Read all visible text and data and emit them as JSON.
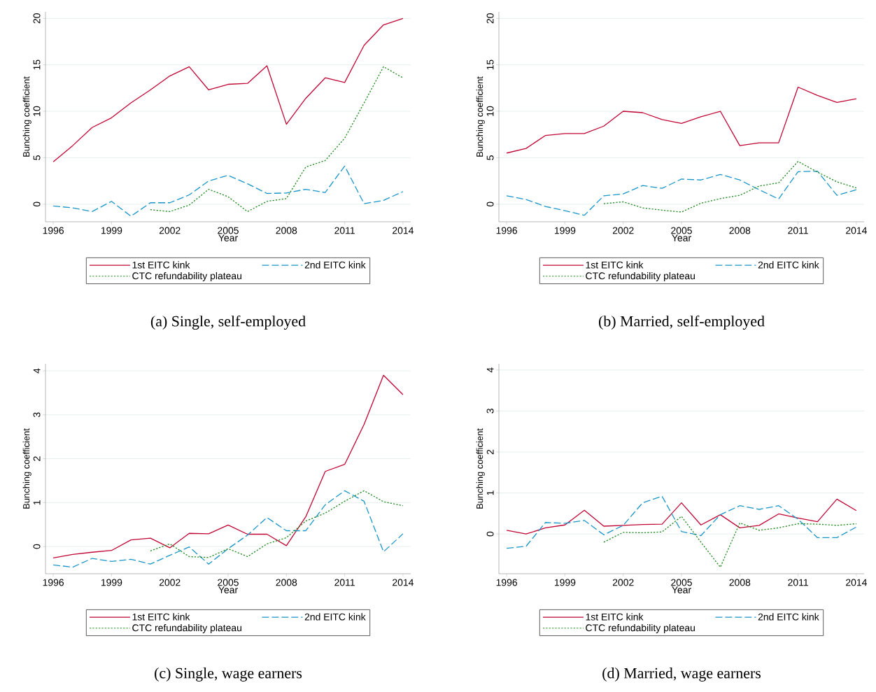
{
  "chart_data": [
    {
      "type": "line",
      "title": "(a) Single, self-employed",
      "xlabel": "Year",
      "ylabel": "Bunching coefficient",
      "x": [
        1996,
        1997,
        1998,
        1999,
        2000,
        2001,
        2002,
        2003,
        2004,
        2005,
        2006,
        2007,
        2008,
        2009,
        2010,
        2011,
        2012,
        2013,
        2014
      ],
      "xlim": [
        1995.6,
        2014.4
      ],
      "ylim": [
        -1.9,
        20.7
      ],
      "xticks": [
        1996,
        1999,
        2002,
        2005,
        2008,
        2011,
        2014
      ],
      "yticks": [
        0,
        5,
        10,
        15,
        20
      ],
      "grid": "y",
      "legend": "bottom",
      "series": [
        {
          "name": "1st EITC kink",
          "color": "#c10534",
          "line_style": "solid",
          "values": [
            4.55,
            6.3,
            8.25,
            9.3,
            10.9,
            12.3,
            13.8,
            14.8,
            12.3,
            12.9,
            13.0,
            14.9,
            8.6,
            11.4,
            13.6,
            13.1,
            17.1,
            19.3,
            20.0
          ]
        },
        {
          "name": "2nd EITC kink",
          "color": "#1a96c8",
          "line_style": "dashed",
          "values": [
            -0.2,
            -0.4,
            -0.8,
            0.3,
            -1.3,
            0.15,
            0.15,
            1.0,
            2.5,
            3.1,
            2.2,
            1.15,
            1.2,
            1.6,
            1.25,
            4.1,
            0.05,
            0.4,
            1.35
          ]
        },
        {
          "name": "CTC refundability plateau",
          "color": "#1f8a1f",
          "line_style": "dotted",
          "values": [
            null,
            null,
            null,
            null,
            null,
            -0.6,
            -0.8,
            -0.1,
            1.6,
            0.8,
            -0.8,
            0.3,
            0.6,
            4.0,
            4.7,
            7.1,
            10.9,
            14.8,
            13.6
          ]
        }
      ]
    },
    {
      "type": "line",
      "title": "(b) Married, self-employed",
      "xlabel": "Year",
      "ylabel": "Bunching coefficient",
      "x": [
        1996,
        1997,
        1998,
        1999,
        2000,
        2001,
        2002,
        2003,
        2004,
        2005,
        2006,
        2007,
        2008,
        2009,
        2010,
        2011,
        2012,
        2013,
        2014
      ],
      "xlim": [
        1995.6,
        2014.4
      ],
      "ylim": [
        -1.9,
        20.7
      ],
      "xticks": [
        1996,
        1999,
        2002,
        2005,
        2008,
        2011,
        2014
      ],
      "yticks": [
        0,
        5,
        10,
        15,
        20
      ],
      "grid": "y",
      "legend": "bottom",
      "series": [
        {
          "name": "1st EITC kink",
          "color": "#c10534",
          "line_style": "solid",
          "values": [
            5.5,
            6.0,
            7.4,
            7.6,
            7.6,
            8.4,
            10.0,
            9.85,
            9.1,
            8.7,
            9.4,
            10.0,
            6.3,
            6.6,
            6.6,
            12.6,
            11.7,
            10.95,
            11.35
          ]
        },
        {
          "name": "2nd EITC kink",
          "color": "#1a96c8",
          "line_style": "dashed",
          "values": [
            0.9,
            0.5,
            -0.25,
            -0.7,
            -1.2,
            0.9,
            1.1,
            2.0,
            1.7,
            2.7,
            2.6,
            3.2,
            2.6,
            1.55,
            0.55,
            3.5,
            3.55,
            0.95,
            1.55
          ]
        },
        {
          "name": "CTC refundability plateau",
          "color": "#1f8a1f",
          "line_style": "dotted",
          "values": [
            null,
            null,
            null,
            null,
            null,
            0.05,
            0.25,
            -0.4,
            -0.65,
            -0.85,
            0.1,
            0.6,
            0.95,
            1.95,
            2.3,
            4.6,
            3.45,
            2.4,
            1.75
          ]
        }
      ]
    },
    {
      "type": "line",
      "title": "(c) Single, wage earners",
      "xlabel": "Year",
      "ylabel": "Bunching coefficient",
      "x": [
        1996,
        1997,
        1998,
        1999,
        2000,
        2001,
        2002,
        2003,
        2004,
        2005,
        2006,
        2007,
        2008,
        2009,
        2010,
        2011,
        2012,
        2013,
        2014
      ],
      "xlim": [
        1995.6,
        2014.4
      ],
      "ylim": [
        -0.62,
        4.16
      ],
      "xticks": [
        1996,
        1999,
        2002,
        2005,
        2008,
        2011,
        2014
      ],
      "yticks": [
        0,
        1,
        2,
        3,
        4
      ],
      "grid": "y",
      "legend": "bottom",
      "series": [
        {
          "name": "1st EITC kink",
          "color": "#c10534",
          "line_style": "solid",
          "values": [
            -0.26,
            -0.18,
            -0.13,
            -0.09,
            0.15,
            0.19,
            -0.03,
            0.3,
            0.29,
            0.49,
            0.28,
            0.28,
            0.02,
            0.68,
            1.71,
            1.87,
            2.78,
            3.9,
            3.46
          ]
        },
        {
          "name": "2nd EITC kink",
          "color": "#1a96c8",
          "line_style": "dashed",
          "values": [
            -0.42,
            -0.47,
            -0.27,
            -0.34,
            -0.29,
            -0.4,
            -0.2,
            -0.01,
            -0.4,
            -0.05,
            0.26,
            0.66,
            0.36,
            0.36,
            0.95,
            1.27,
            1.03,
            -0.12,
            0.29
          ]
        },
        {
          "name": "CTC refundability plateau",
          "color": "#1f8a1f",
          "line_style": "dotted",
          "values": [
            null,
            null,
            null,
            null,
            null,
            -0.1,
            0.06,
            -0.23,
            -0.25,
            -0.05,
            -0.23,
            0.06,
            0.2,
            0.58,
            0.76,
            1.03,
            1.27,
            1.02,
            0.93
          ]
        }
      ]
    },
    {
      "type": "line",
      "title": "(d) Married, wage earners",
      "xlabel": "Year",
      "ylabel": "Bunching coefficient",
      "x": [
        1996,
        1997,
        1998,
        1999,
        2000,
        2001,
        2002,
        2003,
        2004,
        2005,
        2006,
        2007,
        2008,
        2009,
        2010,
        2011,
        2012,
        2013,
        2014
      ],
      "xlim": [
        1995.6,
        2014.4
      ],
      "ylim": [
        -0.97,
        4.15
      ],
      "xticks": [
        1996,
        1999,
        2002,
        2005,
        2008,
        2011,
        2014
      ],
      "yticks": [
        0,
        1,
        2,
        3,
        4
      ],
      "grid": "y",
      "legend": "bottom",
      "series": [
        {
          "name": "1st EITC kink",
          "color": "#c10534",
          "line_style": "solid",
          "values": [
            0.09,
            0.0,
            0.15,
            0.22,
            0.58,
            0.19,
            0.21,
            0.23,
            0.24,
            0.76,
            0.22,
            0.47,
            0.15,
            0.21,
            0.49,
            0.39,
            0.3,
            0.85,
            0.57
          ]
        },
        {
          "name": "2nd EITC kink",
          "color": "#1a96c8",
          "line_style": "dashed",
          "values": [
            -0.35,
            -0.3,
            0.28,
            0.26,
            0.33,
            -0.02,
            0.21,
            0.76,
            0.92,
            0.06,
            -0.04,
            0.47,
            0.69,
            0.6,
            0.69,
            0.36,
            -0.09,
            -0.09,
            0.17
          ]
        },
        {
          "name": "CTC refundability plateau",
          "color": "#1f8a1f",
          "line_style": "dotted",
          "values": [
            null,
            null,
            null,
            null,
            null,
            -0.2,
            0.04,
            0.03,
            0.05,
            0.43,
            -0.2,
            -0.81,
            0.27,
            0.09,
            0.15,
            0.25,
            0.24,
            0.21,
            0.25
          ]
        }
      ]
    }
  ]
}
